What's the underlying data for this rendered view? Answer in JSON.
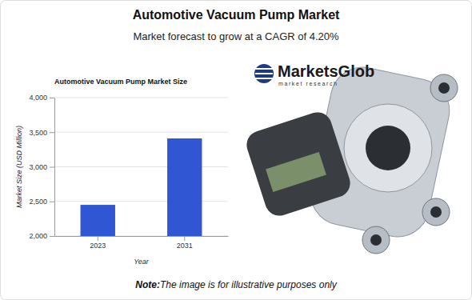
{
  "page": {
    "title": "Automotive Vacuum Pump Market",
    "subtitle": "Market forecast to grow at a CAGR of 4.20%",
    "logo": {
      "name": "MarketsGlob",
      "tagline": "market research"
    },
    "note": {
      "lead": "Note:",
      "text": "The image is for illustrative purposes only"
    }
  },
  "chart_data": {
    "type": "bar",
    "title": "Automotive Vacuum Pump Market Size",
    "x_label": "Year",
    "y_label": "Market Size (USD Million)",
    "categories": [
      "2023",
      "2031"
    ],
    "values": [
      2450,
      3410
    ],
    "color": "#3056d3",
    "ylim": [
      2000,
      4000
    ],
    "yticks": [
      {
        "value": 2000,
        "label": "2,000"
      },
      {
        "value": 2500,
        "label": "2,500"
      },
      {
        "value": 3000,
        "label": "3,000"
      },
      {
        "value": 3500,
        "label": "3,500"
      },
      {
        "value": 4000,
        "label": "4,000"
      }
    ],
    "grid": true
  }
}
